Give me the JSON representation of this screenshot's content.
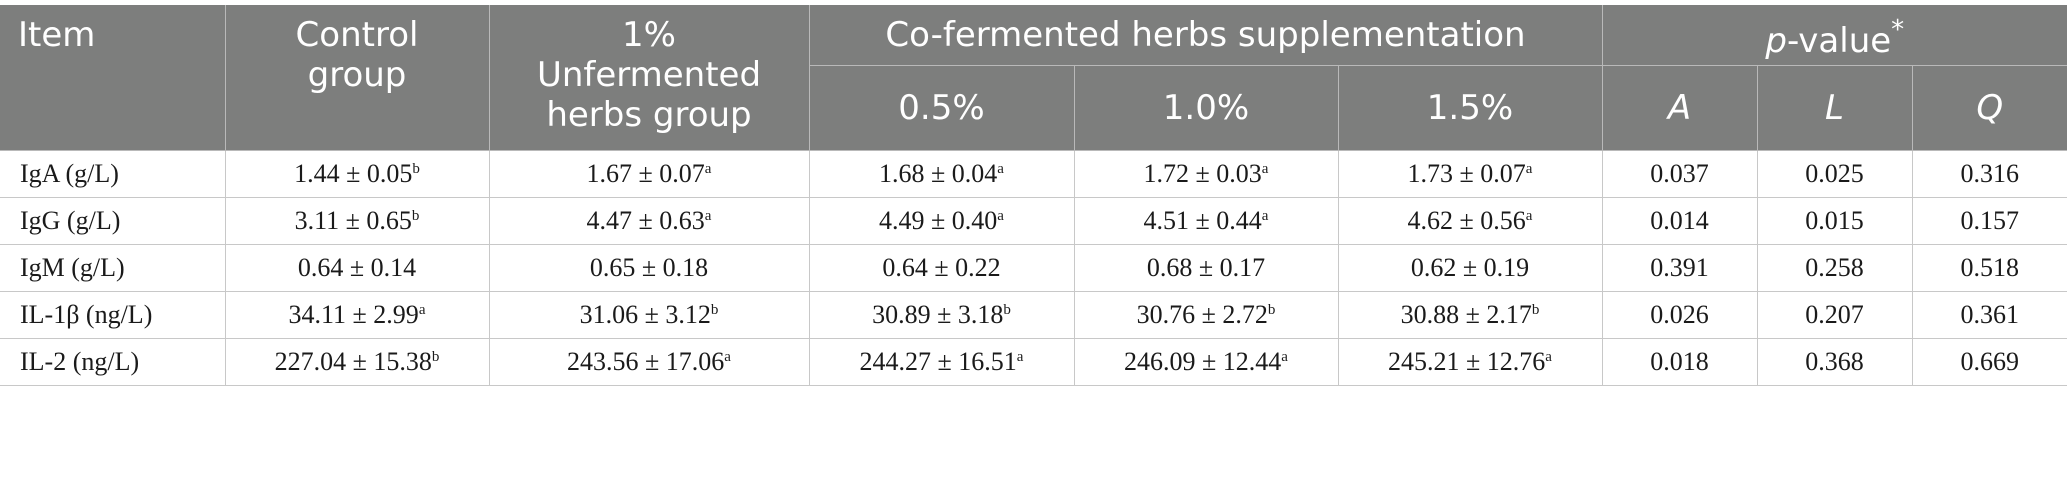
{
  "headers": {
    "item": "Item",
    "control": [
      "Control",
      "group"
    ],
    "unfermented": [
      "1%",
      "Unfermented",
      "herbs group"
    ],
    "cofermented": "Co-fermented herbs supplementation",
    "levels": [
      "0.5%",
      "1.0%",
      "1.5%"
    ],
    "pvalue_p": "p",
    "pvalue_rest": "-value",
    "pvalue_mark": "*",
    "contrasts": [
      "A",
      "L",
      "Q"
    ]
  },
  "rows": [
    {
      "label": "IgA (g/L)",
      "means": [
        [
          "1.44 ± 0.05",
          "b"
        ],
        [
          "1.67 ± 0.07",
          "a"
        ],
        [
          "1.68 ± 0.04",
          "a"
        ],
        [
          "1.72 ± 0.03",
          "a"
        ],
        [
          "1.73 ± 0.07",
          "a"
        ]
      ],
      "p": [
        "0.037",
        "0.025",
        "0.316"
      ]
    },
    {
      "label": "IgG (g/L)",
      "means": [
        [
          "3.11 ± 0.65",
          "b"
        ],
        [
          "4.47 ± 0.63",
          "a"
        ],
        [
          "4.49 ± 0.40",
          "a"
        ],
        [
          "4.51 ± 0.44",
          "a"
        ],
        [
          "4.62 ± 0.56",
          "a"
        ]
      ],
      "p": [
        "0.014",
        "0.015",
        "0.157"
      ]
    },
    {
      "label": "IgM (g/L)",
      "means": [
        [
          "0.64 ± 0.14",
          ""
        ],
        [
          "0.65 ± 0.18",
          ""
        ],
        [
          "0.64 ± 0.22",
          ""
        ],
        [
          "0.68 ± 0.17",
          ""
        ],
        [
          "0.62 ± 0.19",
          ""
        ]
      ],
      "p": [
        "0.391",
        "0.258",
        "0.518"
      ]
    },
    {
      "label": "IL-1β (ng/L)",
      "means": [
        [
          "34.11 ± 2.99",
          "a"
        ],
        [
          "31.06 ± 3.12",
          "b"
        ],
        [
          "30.89 ± 3.18",
          "b"
        ],
        [
          "30.76 ± 2.72",
          "b"
        ],
        [
          "30.88 ± 2.17",
          "b"
        ]
      ],
      "p": [
        "0.026",
        "0.207",
        "0.361"
      ]
    },
    {
      "label": "IL-2 (ng/L)",
      "means": [
        [
          "227.04 ± 15.38",
          "b"
        ],
        [
          "243.56 ± 17.06",
          "a"
        ],
        [
          "244.27 ± 16.51",
          "a"
        ],
        [
          "246.09 ± 12.44",
          "a"
        ],
        [
          "245.21 ± 12.76",
          "a"
        ]
      ],
      "p": [
        "0.018",
        "0.368",
        "0.669"
      ]
    }
  ]
}
